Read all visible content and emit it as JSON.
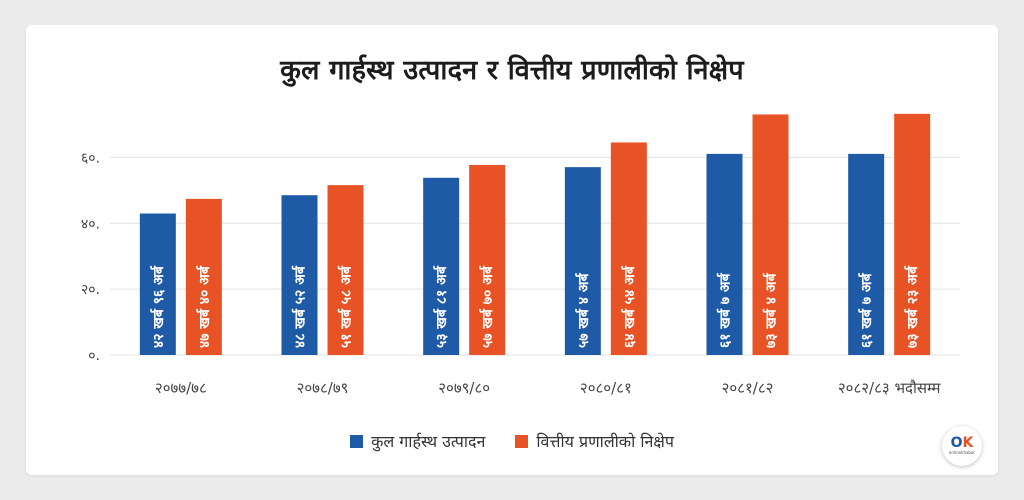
{
  "colors": {
    "gdp": "#1f5aa6",
    "deposit": "#e85326",
    "grid": "#e3e3e3",
    "axis_text": "#444444"
  },
  "logo": {
    "mark": "OK",
    "text": "onlinekhabar"
  },
  "chart_data": {
    "type": "bar",
    "title": "कुल गार्हस्थ उत्पादन र वित्तीय प्रणालीको निक्षेप",
    "categories": [
      "२०७७/७८",
      "२०७८/७९",
      "२०७९/८०",
      "२०८०/८१",
      "२०८१/८२",
      "२०८२/८३ भदौसम्म"
    ],
    "ylim": [
      0,
      75
    ],
    "yticks": [
      0,
      20,
      40,
      60
    ],
    "ytick_labels": [
      "०.",
      "२०.",
      "४०.",
      "६०."
    ],
    "grid": true,
    "legend_position": "bottom",
    "series": [
      {
        "name": "कुल गार्हस्थ उत्पादन",
        "color": "#1f5aa6",
        "values": [
          42.96,
          48.52,
          53.81,
          57.04,
          61.07,
          61.07
        ],
        "labels": [
          "४२ खर्ब ९६ अर्ब",
          "४८ खर्ब ५२ अर्ब",
          "५३ खर्ब ८१ अर्ब",
          "५७ खर्ब ४ अर्ब",
          "६१ खर्ब ७ अर्ब",
          "६१ खर्ब ७ अर्ब"
        ]
      },
      {
        "name": "वित्तीय प्रणालीको निक्षेप",
        "color": "#e85326",
        "values": [
          47.4,
          51.58,
          57.7,
          64.54,
          73.04,
          73.23
        ],
        "labels": [
          "४७ खर्ब ४० अर्ब",
          "५१ खर्ब ५८ अर्ब",
          "५७ खर्ब ७० अर्ब",
          "६४ खर्ब ५४ अर्ब",
          "७३ खर्ब ४ अर्ब",
          "७३ खर्ब २३ अर्ब"
        ]
      }
    ]
  }
}
